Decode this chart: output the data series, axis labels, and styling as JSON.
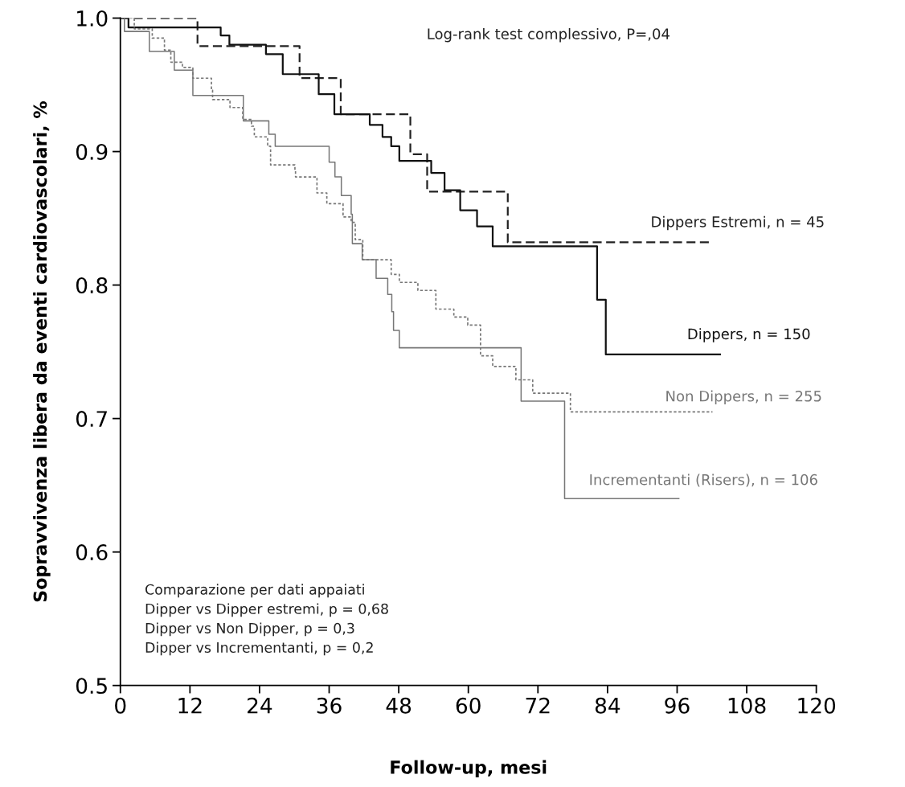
{
  "chart_data": {
    "type": "step",
    "xlabel": "Follow-up, mesi",
    "ylabel": "Sopravvivenza libera da eventi cardiovascolari, %",
    "xlim": [
      0,
      120
    ],
    "xticks": [
      0,
      12,
      24,
      36,
      48,
      60,
      72,
      84,
      96,
      108,
      120
    ],
    "ylim": [
      0.5,
      1.0
    ],
    "yticks": [
      0.5,
      0.6,
      0.7,
      0.8,
      0.9,
      {
        "value": 1.0,
        "label": "1.0"
      }
    ],
    "grid": false,
    "legend": false,
    "marker": "none",
    "annotations": [
      "Log-rank test complessivo, P=,04",
      "Comparazione per dati appaiati\nDipper vs Dipper estremi, p = 0,68\nDipper vs Non Dipper, p = 0,3\nDipper vs Incrementanti, p = 0,2"
    ],
    "series": [
      {
        "name": "Dippers Estremi, n = 45",
        "color": "#222222",
        "line_style": "dashed",
        "x": [
          0,
          13.3,
          30.9,
          38,
          50,
          52.9,
          66.8,
          102.1
        ],
        "values": [
          1.0,
          0.979,
          0.955,
          0.928,
          0.898,
          0.87,
          0.832,
          0.832
        ]
      },
      {
        "name": "Dippers, n = 150",
        "color": "#111111",
        "line_style": "solid",
        "x": [
          0,
          1.4,
          17.3,
          18.8,
          25.1,
          28,
          34.2,
          36.9,
          43,
          45.2,
          46.7,
          48.1,
          53.6,
          55.9,
          58.6,
          61.5,
          64.2,
          82.2,
          83.7,
          103.4
        ],
        "values": [
          1.0,
          0.993,
          0.987,
          0.98,
          0.973,
          0.958,
          0.943,
          0.928,
          0.92,
          0.911,
          0.904,
          0.893,
          0.884,
          0.871,
          0.856,
          0.844,
          0.829,
          0.789,
          0.748,
          0.748
        ]
      },
      {
        "name": "Non Dippers, n = 255",
        "color": "#777777",
        "line_style": "dotted",
        "x": [
          0,
          2.4,
          5.5,
          7.6,
          8.7,
          10.7,
          12.5,
          15.7,
          15.9,
          18.9,
          21.1,
          22.6,
          23.1,
          25.4,
          25.9,
          30.1,
          30.2,
          33.9,
          35.6,
          38.4,
          39.8,
          40.5,
          41.8,
          46.7,
          48.1,
          51.3,
          54.4,
          57.5,
          59.9,
          62.1,
          64.2,
          68.2,
          71.1,
          77.6,
          102.1
        ],
        "values": [
          1.0,
          0.992,
          0.985,
          0.976,
          0.967,
          0.963,
          0.955,
          0.946,
          0.939,
          0.933,
          0.924,
          0.919,
          0.911,
          0.904,
          0.89,
          0.886,
          0.881,
          0.869,
          0.861,
          0.851,
          0.847,
          0.834,
          0.819,
          0.808,
          0.802,
          0.796,
          0.782,
          0.776,
          0.77,
          0.747,
          0.739,
          0.729,
          0.719,
          0.705,
          0.705
        ]
      },
      {
        "name": "Incrementanti (Risers), n = 106",
        "color": "#777777",
        "line_style": "solid",
        "x": [
          0,
          0.7,
          5,
          9.3,
          12.5,
          21.2,
          25.6,
          26.7,
          36,
          37,
          38.1,
          39.8,
          40,
          41.7,
          44.1,
          46.1,
          46.8,
          47.1,
          48.1,
          69.1,
          76.6,
          96.3
        ],
        "values": [
          1.0,
          0.99,
          0.975,
          0.961,
          0.942,
          0.923,
          0.913,
          0.904,
          0.892,
          0.881,
          0.867,
          0.853,
          0.831,
          0.819,
          0.805,
          0.793,
          0.78,
          0.766,
          0.753,
          0.713,
          0.64,
          0.64
        ]
      }
    ]
  }
}
